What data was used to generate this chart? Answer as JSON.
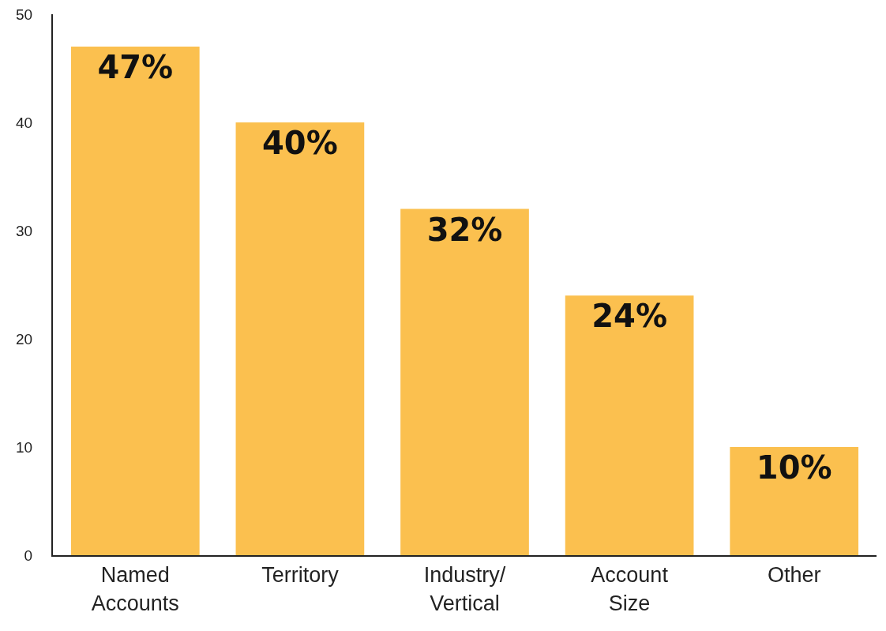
{
  "chart_data": {
    "type": "bar",
    "categories": [
      "Named Accounts",
      "Territory",
      "Industry/Vertical",
      "Account Size",
      "Other"
    ],
    "values": [
      47,
      40,
      32,
      24,
      10
    ],
    "value_labels": [
      "47%",
      "40%",
      "32%",
      "24%",
      "10%"
    ],
    "color": "#fbc04f",
    "ylim": [
      0,
      50
    ],
    "yticks": [
      0,
      10,
      20,
      30,
      40,
      50
    ],
    "grid": false
  }
}
